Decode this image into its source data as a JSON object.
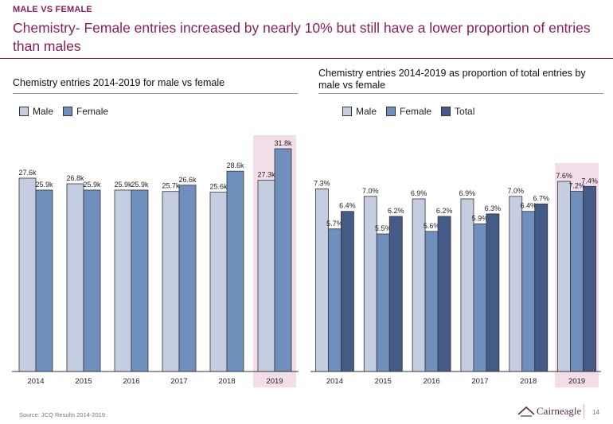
{
  "header": {
    "kicker": "MALE VS FEMALE",
    "headline": "Chemistry- Female entries increased by nearly 10% but still have a lower proportion of entries than males"
  },
  "colors": {
    "male": "#c5cde0",
    "female": "#6f8fbd",
    "total": "#435b86",
    "highlight": "#f3dde8",
    "accent": "#8b1f58"
  },
  "chart_data": [
    {
      "type": "bar",
      "title": "Chemistry entries 2014-2019 for male vs female",
      "categories": [
        "2014",
        "2015",
        "2016",
        "2017",
        "2018",
        "2019"
      ],
      "series": [
        {
          "name": "Male",
          "values": [
            27.6,
            26.8,
            25.9,
            25.7,
            25.6,
            27.3
          ],
          "labels": [
            "27.6k",
            "26.8k",
            "25.9k",
            "25.7k",
            "25.6k",
            "27.3k"
          ]
        },
        {
          "name": "Female",
          "values": [
            25.9,
            25.9,
            25.9,
            26.6,
            28.6,
            31.8
          ],
          "labels": [
            "25.9k",
            "25.9k",
            "25.9k",
            "26.6k",
            "28.6k",
            "31.8k"
          ]
        }
      ],
      "unit": "thousand entries",
      "highlight_category": "2019",
      "legend": "top-left",
      "grid": false
    },
    {
      "type": "bar",
      "title": "Chemistry entries 2014-2019 as proportion of total entries by male vs female",
      "categories": [
        "2014",
        "2015",
        "2016",
        "2017",
        "2018",
        "2019"
      ],
      "series": [
        {
          "name": "Male",
          "values": [
            7.3,
            7.0,
            6.9,
            6.9,
            7.0,
            7.6
          ],
          "labels": [
            "7.3%",
            "7.0%",
            "6.9%",
            "6.9%",
            "7.0%",
            "7.6%"
          ]
        },
        {
          "name": "Female",
          "values": [
            5.7,
            5.5,
            5.6,
            5.9,
            6.4,
            7.2
          ],
          "labels": [
            "5.7%",
            "5.5%",
            "5.6%",
            "5.9%",
            "6.4%",
            "7.2%"
          ]
        },
        {
          "name": "Total",
          "values": [
            6.4,
            6.2,
            6.2,
            6.3,
            6.7,
            7.4
          ],
          "labels": [
            "6.4%",
            "6.2%",
            "6.2%",
            "6.3%",
            "6.7%",
            "7.4%"
          ]
        }
      ],
      "unit": "percent of total entries",
      "highlight_category": "2019",
      "legend": "top-left",
      "grid": false
    }
  ],
  "footer": {
    "source": "Source: JCQ Results 2014-2019",
    "brand": "Cairneagle",
    "page": "14"
  }
}
